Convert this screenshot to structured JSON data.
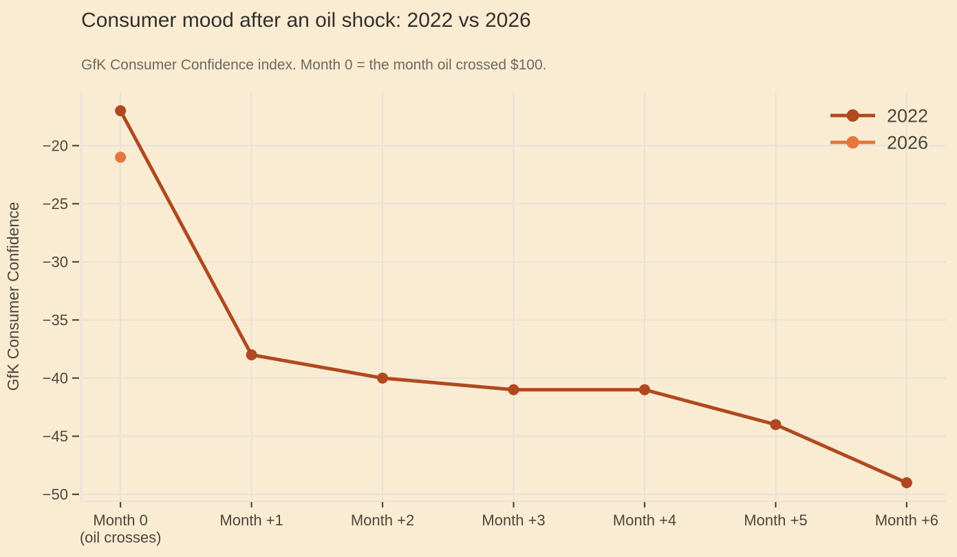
{
  "colors": {
    "background": "#faecd3",
    "grid": "#e8e2d9",
    "axis_line": "#e8e2d9",
    "tick": "#4c473c",
    "title_text": "#33302a",
    "subtitle_text": "#6e695e",
    "axis_text": "#4c473c",
    "legend_text": "#4a453a",
    "series_2022": "#b0491f",
    "series_2026": "#e2773f"
  },
  "chart_data": {
    "type": "line",
    "title": "Consumer mood after an oil shock: 2022 vs 2026",
    "subtitle": "GfK Consumer Confidence index. Month 0 = the month oil crossed $100.",
    "xlabel": "",
    "ylabel": "GfK Consumer Confidence",
    "categories": [
      "Month 0\n(oil crosses)",
      "Month +1",
      "Month +2",
      "Month +3",
      "Month +4",
      "Month +5",
      "Month +6"
    ],
    "x": [
      0,
      1,
      2,
      3,
      4,
      5,
      6
    ],
    "series": [
      {
        "name": "2022",
        "color": "#b0491f",
        "values": [
          -17,
          -38,
          -40,
          -41,
          -41,
          -44,
          -49
        ]
      },
      {
        "name": "2026",
        "color": "#e2773f",
        "values": [
          -21,
          null,
          null,
          null,
          null,
          null,
          null
        ]
      }
    ],
    "yticks": [
      -20,
      -25,
      -30,
      -35,
      -40,
      -45,
      -50
    ],
    "ylim": [
      -50.6,
      -15.4
    ],
    "xlim": [
      -0.3,
      6.3
    ],
    "grid": true,
    "legend_position": "inside-top-right"
  }
}
